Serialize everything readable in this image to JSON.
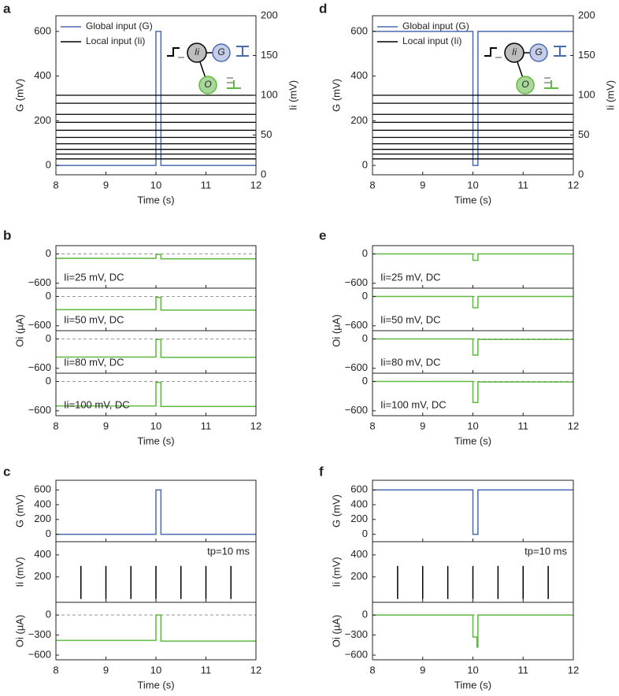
{
  "chart_data": [
    {
      "type": "line",
      "label": "a",
      "xlabel": "Time (s)",
      "xlim": [
        8,
        12
      ],
      "xticks": [
        8,
        9,
        10,
        11,
        12
      ],
      "legend": "upper left",
      "inset_labels": [
        "Ii",
        "G",
        "O"
      ],
      "subplots": [
        {
          "ylabel": "G (mV)",
          "ylim": [
            -42,
            670
          ],
          "yticks": [
            0,
            200,
            400,
            600
          ],
          "y2label": "Ii (mV)",
          "y2lim": [
            0,
            200
          ],
          "y2ticks": [
            0,
            50,
            100,
            150,
            200
          ],
          "series": [
            {
              "name": "Global input (G)",
              "color": "#4a6ab0",
              "x": [
                8,
                10,
                10,
                10.1,
                10.1,
                12
              ],
              "values": [
                0,
                0,
                600,
                600,
                0,
                0
              ]
            },
            {
              "name": "Local input (Ii)",
              "color": "#000000",
              "axis": "y2",
              "levels": [
                100,
                90,
                76,
                66,
                56,
                47,
                39,
                32,
                26,
                20
              ]
            }
          ]
        }
      ]
    },
    {
      "type": "line",
      "label": "b",
      "xlabel": "Time (s)",
      "xlim": [
        8,
        12
      ],
      "xticks": [
        8,
        9,
        10,
        11,
        12
      ],
      "ylabel": "Oi (µA)",
      "subplots": [
        {
          "ylim": [
            -700,
            170
          ],
          "yticks": [
            {
              "value": -600,
              "label": "−600"
            },
            0
          ],
          "hline": 0,
          "annotation": "Ii=25 mV, DC",
          "series": [
            {
              "color": "#5fb840",
              "x": [
                8,
                10,
                10,
                10.1,
                10.1,
                12
              ],
              "values": [
                -90,
                -90,
                -10,
                -10,
                -100,
                -100
              ]
            }
          ]
        },
        {
          "ylim": [
            -700,
            170
          ],
          "yticks": [
            {
              "value": -600,
              "label": "−600"
            },
            0
          ],
          "hline": 0,
          "annotation": "Ii=50 mV, DC",
          "series": [
            {
              "color": "#5fb840",
              "x": [
                8,
                10,
                10,
                10.1,
                10.1,
                12
              ],
              "values": [
                -270,
                -270,
                -20,
                -20,
                -280,
                -280
              ]
            }
          ]
        },
        {
          "ylim": [
            -700,
            170
          ],
          "yticks": [
            {
              "value": -600,
              "label": "−600"
            },
            0
          ],
          "hline": 0,
          "annotation": "Ii=80 mV, DC",
          "series": [
            {
              "color": "#5fb840",
              "x": [
                8,
                10,
                10,
                10.1,
                10.1,
                12
              ],
              "values": [
                -370,
                -370,
                -10,
                -10,
                -375,
                -375
              ]
            }
          ]
        },
        {
          "ylim": [
            -700,
            170
          ],
          "yticks": [
            {
              "value": -600,
              "label": "−600"
            },
            0
          ],
          "hline": 0,
          "annotation": "Ii=100 mV, DC",
          "series": [
            {
              "color": "#5fb840",
              "x": [
                8,
                10,
                10,
                10.1,
                10.1,
                12
              ],
              "values": [
                -500,
                -500,
                -20,
                -20,
                -510,
                -510
              ]
            }
          ]
        }
      ]
    },
    {
      "type": "line",
      "label": "c",
      "xlabel": "Time (s)",
      "xlim": [
        8,
        12
      ],
      "xticks": [
        8,
        9,
        10,
        11,
        12
      ],
      "subplots": [
        {
          "ylabel": "G (mV)",
          "ylim": [
            -100,
            730
          ],
          "yticks": [
            0,
            200,
            400,
            600
          ],
          "series": [
            {
              "color": "#4a6ab0",
              "x": [
                8,
                10,
                10,
                10.1,
                10.1,
                12
              ],
              "values": [
                0,
                0,
                600,
                600,
                0,
                0
              ]
            }
          ]
        },
        {
          "ylabel": "Ii (mV)",
          "ylim": [
            -30,
            520
          ],
          "yticks": [
            200,
            400
          ],
          "annotation": "tp=10 ms",
          "series": [
            {
              "color": "#000000",
              "style": "stem",
              "x": [
                8.5,
                9,
                9.5,
                10,
                10.5,
                11,
                11.5
              ],
              "values": [
                300,
                300,
                300,
                300,
                300,
                300,
                300
              ]
            }
          ]
        },
        {
          "ylabel": "Oi (µA)",
          "ylim": [
            -670,
            190
          ],
          "yticks": [
            {
              "value": -600,
              "label": "−600"
            },
            {
              "value": -300,
              "label": "−300"
            },
            0
          ],
          "hline": 0,
          "series": [
            {
              "color": "#5fb840",
              "x": [
                8,
                10,
                10,
                10.1,
                10.1,
                12
              ],
              "values": [
                -380,
                -380,
                0,
                0,
                -390,
                -390
              ]
            }
          ]
        }
      ]
    },
    {
      "type": "line",
      "label": "d",
      "xlabel": "Time (s)",
      "xlim": [
        8,
        12
      ],
      "xticks": [
        8,
        9,
        10,
        11,
        12
      ],
      "legend": "upper left",
      "inset_labels": [
        "Ii",
        "G",
        "O"
      ],
      "subplots": [
        {
          "ylabel": "G (mV)",
          "ylim": [
            -42,
            670
          ],
          "yticks": [
            0,
            200,
            400,
            600
          ],
          "y2label": "Ii (mV)",
          "y2lim": [
            0,
            200
          ],
          "y2ticks": [
            0,
            50,
            100,
            150,
            200
          ],
          "series": [
            {
              "name": "Global input (G)",
              "color": "#4a6ab0",
              "x": [
                8,
                10,
                10,
                10.1,
                10.1,
                12
              ],
              "values": [
                600,
                600,
                0,
                0,
                600,
                600
              ]
            },
            {
              "name": "Local input (Ii)",
              "color": "#000000",
              "axis": "y2",
              "levels": [
                100,
                90,
                76,
                66,
                56,
                47,
                39,
                32,
                26,
                20
              ]
            }
          ]
        }
      ]
    },
    {
      "type": "line",
      "label": "e",
      "xlabel": "Time (s)",
      "xlim": [
        8,
        12
      ],
      "xticks": [
        8,
        9,
        10,
        11,
        12
      ],
      "ylabel": "Oi (µA)",
      "subplots": [
        {
          "ylim": [
            -700,
            170
          ],
          "yticks": [
            {
              "value": -600,
              "label": "−600"
            },
            0
          ],
          "hline": 0,
          "annotation": "Ii=25 mV, DC",
          "series": [
            {
              "color": "#5fb840",
              "x": [
                8,
                10,
                10,
                10.1,
                10.1,
                12
              ],
              "values": [
                0,
                0,
                -130,
                -130,
                0,
                0
              ]
            }
          ]
        },
        {
          "ylim": [
            -700,
            170
          ],
          "yticks": [
            {
              "value": -600,
              "label": "−600"
            },
            0
          ],
          "hline": 0,
          "annotation": "Ii=50 mV, DC",
          "series": [
            {
              "color": "#5fb840",
              "x": [
                8,
                10,
                10,
                10.1,
                10.1,
                12
              ],
              "values": [
                0,
                0,
                -230,
                -230,
                0,
                0
              ]
            }
          ]
        },
        {
          "ylim": [
            -700,
            170
          ],
          "yticks": [
            {
              "value": -600,
              "label": "−600"
            },
            0
          ],
          "hline": 0,
          "annotation": "Ii=80 mV, DC",
          "series": [
            {
              "color": "#5fb840",
              "x": [
                8,
                10,
                10,
                10.1,
                10.1,
                12
              ],
              "values": [
                0,
                0,
                -330,
                -330,
                -10,
                -10
              ]
            }
          ]
        },
        {
          "ylim": [
            -700,
            170
          ],
          "yticks": [
            {
              "value": -600,
              "label": "−600"
            },
            0
          ],
          "hline": 0,
          "annotation": "Ii=100 mV, DC",
          "series": [
            {
              "color": "#5fb840",
              "x": [
                8,
                10,
                10,
                10.1,
                10.1,
                12
              ],
              "values": [
                0,
                0,
                -430,
                -430,
                -10,
                -10
              ]
            }
          ]
        }
      ]
    },
    {
      "type": "line",
      "label": "f",
      "xlabel": "Time (s)",
      "xlim": [
        8,
        12
      ],
      "xticks": [
        8,
        9,
        10,
        11,
        12
      ],
      "subplots": [
        {
          "ylabel": "G (mV)",
          "ylim": [
            -100,
            730
          ],
          "yticks": [
            0,
            200,
            400,
            600
          ],
          "series": [
            {
              "color": "#4a6ab0",
              "x": [
                8,
                10,
                10,
                10.1,
                10.1,
                12
              ],
              "values": [
                600,
                600,
                0,
                0,
                600,
                600
              ]
            }
          ]
        },
        {
          "ylabel": "Ii (mV)",
          "ylim": [
            -30,
            520
          ],
          "yticks": [
            200,
            400
          ],
          "annotation": "tp=10 ms",
          "series": [
            {
              "color": "#000000",
              "style": "stem",
              "x": [
                8.5,
                9,
                9.5,
                10,
                10.5,
                11,
                11.5
              ],
              "values": [
                300,
                300,
                300,
                300,
                300,
                300,
                300
              ]
            }
          ]
        },
        {
          "ylabel": "Oi (µA)",
          "ylim": [
            -670,
            190
          ],
          "yticks": [
            {
              "value": -600,
              "label": "−600"
            },
            {
              "value": -300,
              "label": "−300"
            },
            0
          ],
          "hline": 0,
          "series": [
            {
              "color": "#5fb840",
              "x": [
                8,
                10,
                10,
                10.08,
                10.08,
                10.1,
                10.1,
                12
              ],
              "values": [
                0,
                0,
                -330,
                -330,
                -480,
                -480,
                0,
                0
              ]
            }
          ]
        }
      ]
    }
  ]
}
